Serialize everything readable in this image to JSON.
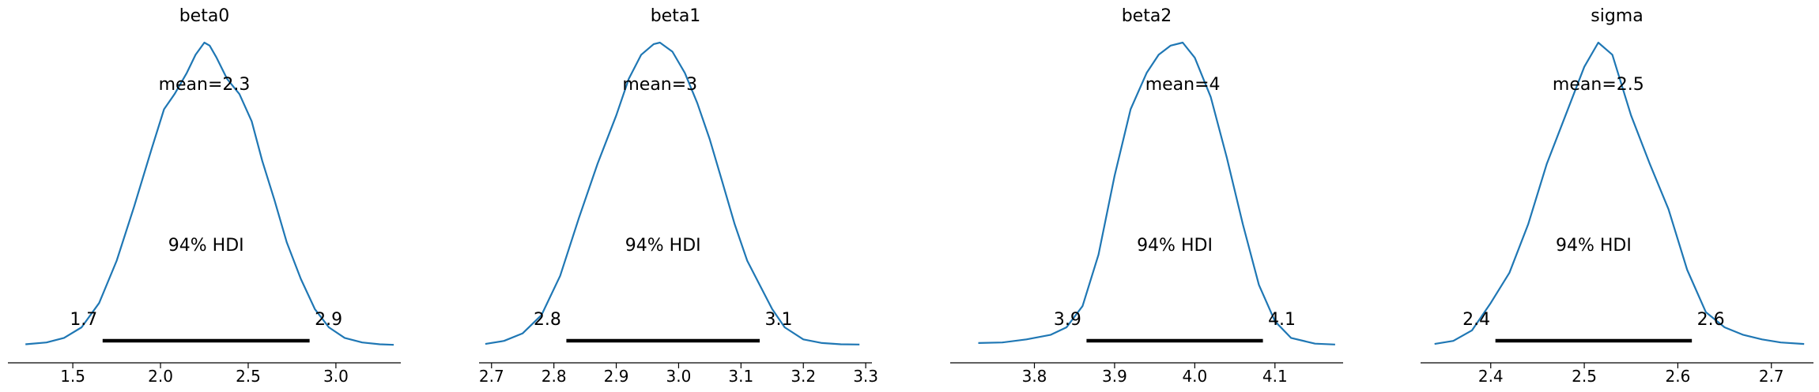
{
  "chart_data": [
    {
      "type": "line",
      "title": "beta0",
      "xlabel": "",
      "ylabel": "",
      "xlim": [
        1.13,
        3.37
      ],
      "xticks": [
        1.5,
        2.0,
        2.5,
        3.0
      ],
      "xtick_labels": [
        "1.5",
        "2.0",
        "2.5",
        "3.0"
      ],
      "mean_label": "mean=2.3",
      "hdi_label": "94% HDI",
      "hdi": [
        1.67,
        2.85
      ],
      "hdi_low_label": "1.7",
      "hdi_high_label": "2.9",
      "color": "#1f77b4",
      "x": [
        1.23,
        1.35,
        1.45,
        1.55,
        1.65,
        1.75,
        1.85,
        1.95,
        2.02,
        2.08,
        2.15,
        2.2,
        2.25,
        2.28,
        2.32,
        2.38,
        2.45,
        2.52,
        2.58,
        2.65,
        2.72,
        2.8,
        2.88,
        2.96,
        3.05,
        3.15,
        3.25,
        3.33
      ],
      "density": [
        0.004,
        0.01,
        0.025,
        0.06,
        0.14,
        0.28,
        0.46,
        0.65,
        0.78,
        0.83,
        0.9,
        0.96,
        1.0,
        0.99,
        0.95,
        0.88,
        0.83,
        0.74,
        0.61,
        0.48,
        0.34,
        0.22,
        0.12,
        0.06,
        0.025,
        0.01,
        0.004,
        0.002
      ]
    },
    {
      "type": "line",
      "title": "beta1",
      "xlabel": "",
      "ylabel": "",
      "xlim": [
        2.68,
        3.31
      ],
      "xticks": [
        2.7,
        2.8,
        2.9,
        3.0,
        3.1,
        3.2,
        3.3
      ],
      "xtick_labels": [
        "2.7",
        "2.8",
        "2.9",
        "3.0",
        "3.1",
        "3.2",
        "3.3"
      ],
      "mean_label": "mean=3",
      "hdi_label": "94% HDI",
      "hdi": [
        2.82,
        3.13
      ],
      "hdi_low_label": "2.8",
      "hdi_high_label": "3.1",
      "color": "#1f77b4",
      "x": [
        2.69,
        2.72,
        2.75,
        2.78,
        2.81,
        2.84,
        2.87,
        2.9,
        2.92,
        2.94,
        2.96,
        2.97,
        2.99,
        3.01,
        3.03,
        3.05,
        3.07,
        3.09,
        3.11,
        3.13,
        3.15,
        3.17,
        3.2,
        3.23,
        3.26,
        3.29
      ],
      "density": [
        0.005,
        0.015,
        0.04,
        0.1,
        0.23,
        0.42,
        0.6,
        0.76,
        0.88,
        0.96,
        0.995,
        1.0,
        0.97,
        0.9,
        0.8,
        0.68,
        0.54,
        0.4,
        0.28,
        0.2,
        0.12,
        0.06,
        0.02,
        0.008,
        0.004,
        0.003
      ]
    },
    {
      "type": "line",
      "title": "beta2",
      "xlabel": "",
      "ylabel": "",
      "xlim": [
        3.695,
        4.185
      ],
      "xticks": [
        3.8,
        3.9,
        4.0,
        4.1
      ],
      "xtick_labels": [
        "3.8",
        "3.9",
        "4.0",
        "4.1"
      ],
      "mean_label": "mean=4",
      "hdi_label": "94% HDI",
      "hdi": [
        3.865,
        4.085
      ],
      "hdi_low_label": "3.9",
      "hdi_high_label": "4.1",
      "color": "#1f77b4",
      "x": [
        3.73,
        3.76,
        3.79,
        3.82,
        3.84,
        3.86,
        3.88,
        3.9,
        3.92,
        3.94,
        3.955,
        3.97,
        3.985,
        4.0,
        4.02,
        4.04,
        4.06,
        4.08,
        4.1,
        4.12,
        4.15,
        4.175
      ],
      "density": [
        0.008,
        0.01,
        0.02,
        0.035,
        0.06,
        0.13,
        0.3,
        0.56,
        0.78,
        0.9,
        0.96,
        0.99,
        1.0,
        0.95,
        0.82,
        0.62,
        0.4,
        0.2,
        0.08,
        0.025,
        0.006,
        0.003
      ]
    },
    {
      "type": "line",
      "title": "sigma",
      "xlabel": "",
      "ylabel": "",
      "xlim": [
        2.325,
        2.745
      ],
      "xticks": [
        2.4,
        2.5,
        2.6,
        2.7
      ],
      "xtick_labels": [
        "2.4",
        "2.5",
        "2.6",
        "2.7"
      ],
      "mean_label": "mean=2.5",
      "hdi_label": "94% HDI",
      "hdi": [
        2.405,
        2.615
      ],
      "hdi_low_label": "2.4",
      "hdi_high_label": "2.6",
      "color": "#1f77b4",
      "x": [
        2.34,
        2.36,
        2.38,
        2.4,
        2.42,
        2.44,
        2.46,
        2.48,
        2.5,
        2.515,
        2.53,
        2.55,
        2.57,
        2.59,
        2.61,
        2.63,
        2.65,
        2.67,
        2.69,
        2.71,
        2.735
      ],
      "density": [
        0.005,
        0.015,
        0.05,
        0.14,
        0.24,
        0.4,
        0.6,
        0.76,
        0.92,
        1.0,
        0.96,
        0.76,
        0.6,
        0.45,
        0.25,
        0.11,
        0.06,
        0.035,
        0.02,
        0.01,
        0.005
      ]
    }
  ]
}
